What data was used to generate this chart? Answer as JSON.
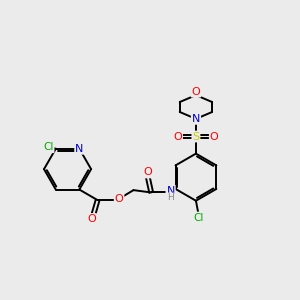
{
  "background_color": "#ebebeb",
  "atom_colors": {
    "C": "#000000",
    "N": "#0000cc",
    "O": "#ff0000",
    "S": "#cccc00",
    "Cl": "#00aa00",
    "H": "#888888"
  },
  "bond_color": "#000000",
  "bond_width": 1.4,
  "fig_size": [
    3.0,
    3.0
  ],
  "dpi": 100
}
